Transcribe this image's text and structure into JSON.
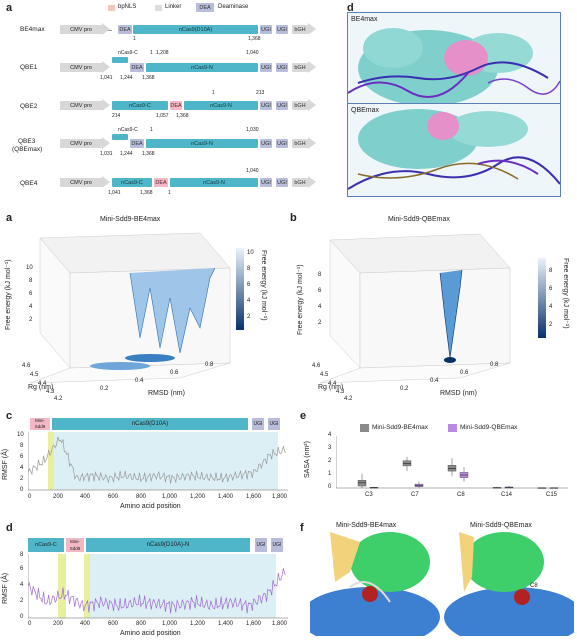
{
  "panels": {
    "a_top": "a",
    "d_top": "d",
    "a_mid": "a",
    "b_mid": "b",
    "c": "c",
    "e": "e",
    "d_bot": "d",
    "f": "f"
  },
  "legend": {
    "bpnls": "bpNLS",
    "linker": "Linker",
    "dea": "DEA",
    "deaminase": "Deaminase"
  },
  "constructs": [
    {
      "name": "BE4max",
      "pro": "CMV pro",
      "seg": [
        "DEA",
        "nCas9(D10A)",
        "UGI",
        "UGI",
        "bGH"
      ],
      "nums": [
        "1",
        "1,368"
      ]
    },
    {
      "name": "QBE1",
      "pro": "CMV pro",
      "seg": [
        "DEA",
        "nCas9-N",
        "UGI",
        "UGI",
        "bGH"
      ],
      "nums": [
        "1,041",
        "1,244",
        "1,368",
        "nCas9-C",
        "1",
        "1,208",
        "1,040"
      ]
    },
    {
      "name": "QBE2",
      "pro": "CMV pro",
      "seg": [
        "nCas9-C",
        "DEA",
        "nCas9-N",
        "UGI",
        "UGI",
        "bGH"
      ],
      "nums": [
        "214",
        "1,057",
        "1,368",
        "1",
        "213"
      ]
    },
    {
      "name": "QBE3\n(QBEmax)",
      "name1": "QBE3",
      "name2": "(QBEmax)",
      "pro": "CMV pro",
      "seg": [
        "DEA",
        "nCas9-N",
        "UGI",
        "UGI",
        "bGH"
      ],
      "nums": [
        "1,031",
        "1,244",
        "1,368",
        "nCas9-C",
        "1",
        "1,030"
      ]
    },
    {
      "name": "QBE4",
      "pro": "CMV pro",
      "seg": [
        "nCas9-C",
        "DEA",
        "nCas9-N",
        "UGI",
        "UGI",
        "bGH"
      ],
      "nums": [
        "1,041",
        "1,368",
        "1",
        "1,040"
      ]
    }
  ],
  "mol_d": {
    "top": "BE4max",
    "bottom": "QBEmax"
  },
  "fel_a": {
    "title": "Mini-Sdd9-BE4max",
    "zlabel": "Free energy (kJ mol⁻¹)",
    "cbar_label": "Free energy (kJ mol⁻¹)",
    "ylabel": "Rg (nm)",
    "xlabel": "RMSD (nm)",
    "z_ticks": [
      "10",
      "8",
      "6",
      "4",
      "2"
    ],
    "cbar_ticks": [
      "10",
      "8",
      "6",
      "4",
      "2"
    ],
    "rg_ticks": [
      "4.6",
      "4.5",
      "4.4",
      "4.3",
      "4.2"
    ],
    "rmsd_ticks": [
      "0.2",
      "0.4",
      "0.6",
      "0.8"
    ]
  },
  "fel_b": {
    "title": "Mini-Sdd9-QBEmax",
    "zlabel": "Free energy (kJ mol⁻¹)",
    "cbar_label": "Free energy (kJ mol⁻¹)",
    "ylabel": "Rg (nm)",
    "xlabel": "RMSD (nm)",
    "z_ticks": [
      "8",
      "6",
      "4",
      "2"
    ],
    "cbar_ticks": [
      "8",
      "6",
      "4",
      "2"
    ],
    "rg_ticks": [
      "4.6",
      "4.5",
      "4.4",
      "4.3",
      "4.2"
    ],
    "rmsd_ticks": [
      "0.2",
      "0.4",
      "0.6",
      "0.8"
    ]
  },
  "rmsf_c": {
    "domains": [
      "Mini-\nSdd9",
      "nCas9(D10A)",
      "UGI",
      "UGI"
    ],
    "dom_mini1": "Mini-",
    "dom_mini2": "Sdd9",
    "ylabel": "RMSF (Å)",
    "xlabel": "Amino acid position",
    "yticks": [
      "0",
      "2",
      "4",
      "6",
      "8",
      "10"
    ],
    "xticks": [
      "0",
      "200",
      "400",
      "600",
      "800",
      "1,000",
      "1,200",
      "1,400",
      "1,600",
      "1,800"
    ],
    "linker": "Linker"
  },
  "rmsf_d": {
    "dom_nc": "nCas9-C",
    "dom_mini1": "Mini-",
    "dom_mini2": "Sdd9",
    "dom_main": "nCas9(D10A)-N",
    "dom_ugi": "UGI",
    "ylabel": "RMSF (Å)",
    "xlabel": "Amino acid position",
    "yticks": [
      "0",
      "2",
      "4",
      "6",
      "8"
    ],
    "xticks": [
      "0",
      "200",
      "400",
      "600",
      "800",
      "1,000",
      "1,200",
      "1,400",
      "1,600",
      "1,800"
    ],
    "linker": "Linker"
  },
  "sasa": {
    "legend": [
      "Mini-Sdd9-BE4max",
      "Mini-Sdd9-QBEmax"
    ],
    "ylabel": "SASA (nm²)",
    "yticks": [
      "0",
      "1",
      "2",
      "3",
      "4"
    ]
  },
  "mol_f": {
    "left": "Mini-Sdd9-BE4max",
    "right": "Mini-Sdd9-QBEmax",
    "res": "C8"
  },
  "colors": {
    "ncas": "#4fb6c9",
    "dea": "#f4b8c4",
    "ugi": "#b7bdda",
    "rmsf_c": "#9a9a9a",
    "rmsf_d": "#a06ad0",
    "box_grey": "#8a8a8a",
    "box_purple": "#b98be0",
    "fel_dark": "#08306b",
    "fel_light": "#deebf7"
  },
  "chart_data": [
    {
      "type": "area",
      "title": "",
      "xlabel": "Amino acid position",
      "ylabel": "RMSF (Å)",
      "ylim": [
        0,
        10
      ],
      "xlim": [
        0,
        1850
      ],
      "series": [
        {
          "name": "Mini-Sdd9-BE4max",
          "description_values": [
            3,
            5,
            9,
            2,
            2.5,
            2,
            2.5,
            2,
            2.5,
            2,
            2.5,
            2.2,
            2,
            2.5,
            3,
            6,
            7
          ]
        }
      ]
    },
    {
      "type": "area",
      "title": "",
      "xlabel": "Amino acid position",
      "ylabel": "RMSF (Å)",
      "ylim": [
        0,
        8
      ],
      "xlim": [
        0,
        1850
      ],
      "series": [
        {
          "name": "Mini-Sdd9-QBEmax",
          "description_values": [
            4,
            2,
            3,
            1.5,
            2,
            1.5,
            2,
            1.8,
            1.5,
            2,
            1.5,
            2,
            1.5,
            3,
            6
          ]
        }
      ]
    },
    {
      "type": "bar",
      "title": "",
      "ylabel": "SASA (nm²)",
      "ylim": [
        0,
        4
      ],
      "categories": [
        "C3",
        "C7",
        "C8",
        "C14",
        "C15"
      ],
      "series": [
        {
          "name": "Mini-Sdd9-BE4max",
          "median": [
            0.4,
            1.9,
            1.5,
            0.02,
            0.01
          ],
          "q1": [
            0.15,
            1.7,
            1.3,
            0,
            0
          ],
          "q3": [
            0.6,
            2.1,
            1.75,
            0.04,
            0.02
          ],
          "min": [
            0,
            1.3,
            0.9,
            0,
            0
          ],
          "max": [
            1.1,
            2.4,
            2.3,
            0.1,
            0.05
          ]
        },
        {
          "name": "Mini-Sdd9-QBEmax",
          "median": [
            0.02,
            0.2,
            1.0,
            0.05,
            0.01
          ],
          "q1": [
            0,
            0.1,
            0.8,
            0,
            0
          ],
          "q3": [
            0.05,
            0.3,
            1.2,
            0.08,
            0.02
          ],
          "min": [
            0,
            0,
            0.5,
            0,
            0
          ],
          "max": [
            0.1,
            0.5,
            1.6,
            0.15,
            0.05
          ]
        }
      ]
    }
  ]
}
